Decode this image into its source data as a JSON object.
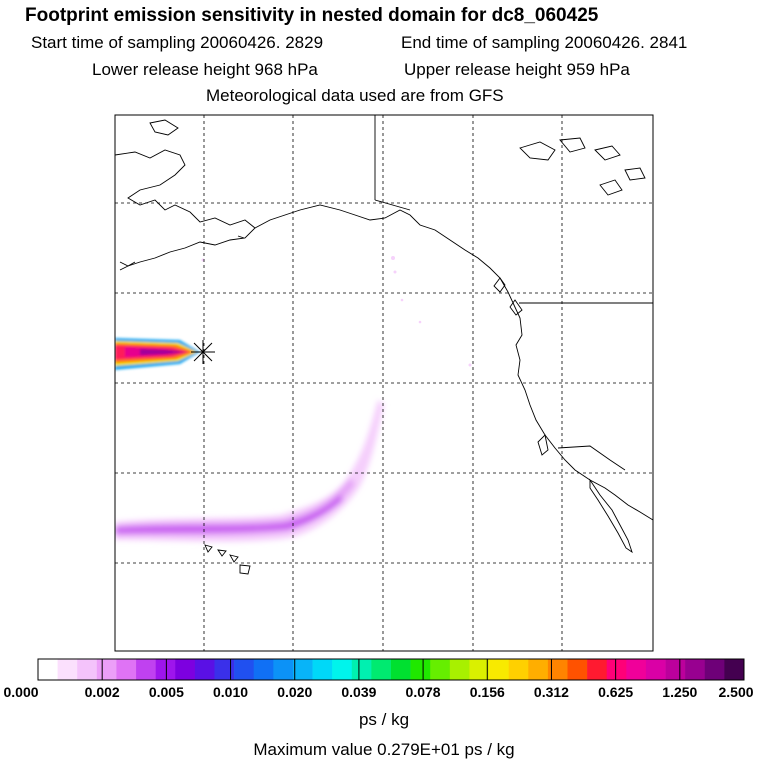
{
  "header": {
    "title": "Footprint emission sensitivity in nested domain for dc8_060425",
    "start_label": "Start time of sampling 20060426.  2829",
    "end_label": "End time of sampling 20060426.  2841",
    "lower_label": "Lower release height  968 hPa",
    "upper_label": "Upper release height  959 hPa",
    "met_label": "Meteorological data used are from GFS"
  },
  "colorbar": {
    "tick_labels": [
      "0.000",
      "0.002",
      "0.005",
      "0.010",
      "0.020",
      "0.039",
      "0.078",
      "0.156",
      "0.312",
      "0.625",
      "1.250",
      "2.500"
    ],
    "colors": [
      "#ffffff",
      "#fbe0fd",
      "#f4c3fb",
      "#ec9ff8",
      "#df73f5",
      "#c041f0",
      "#9e15ec",
      "#7d00e0",
      "#5a10e5",
      "#3a30ea",
      "#2050f0",
      "#1070f5",
      "#0c92f7",
      "#08b4f8",
      "#00d8f8",
      "#00f4ec",
      "#00f0b0",
      "#00ea70",
      "#00e030",
      "#20e800",
      "#66ee00",
      "#a8f000",
      "#daf000",
      "#f8ea00",
      "#ffd000",
      "#ffae00",
      "#ff8400",
      "#ff5200",
      "#ff1a30",
      "#ff0078",
      "#f0009a",
      "#da00a6",
      "#bc009c",
      "#980090",
      "#6e0078",
      "#440050"
    ],
    "units": "ps / kg"
  },
  "footer": {
    "max_value_label": "Maximum value  0.279E+01 ps / kg"
  },
  "map": {
    "features": [
      "coastlines",
      "grid-lines",
      "release-point-marker",
      "footprint-plume"
    ]
  }
}
